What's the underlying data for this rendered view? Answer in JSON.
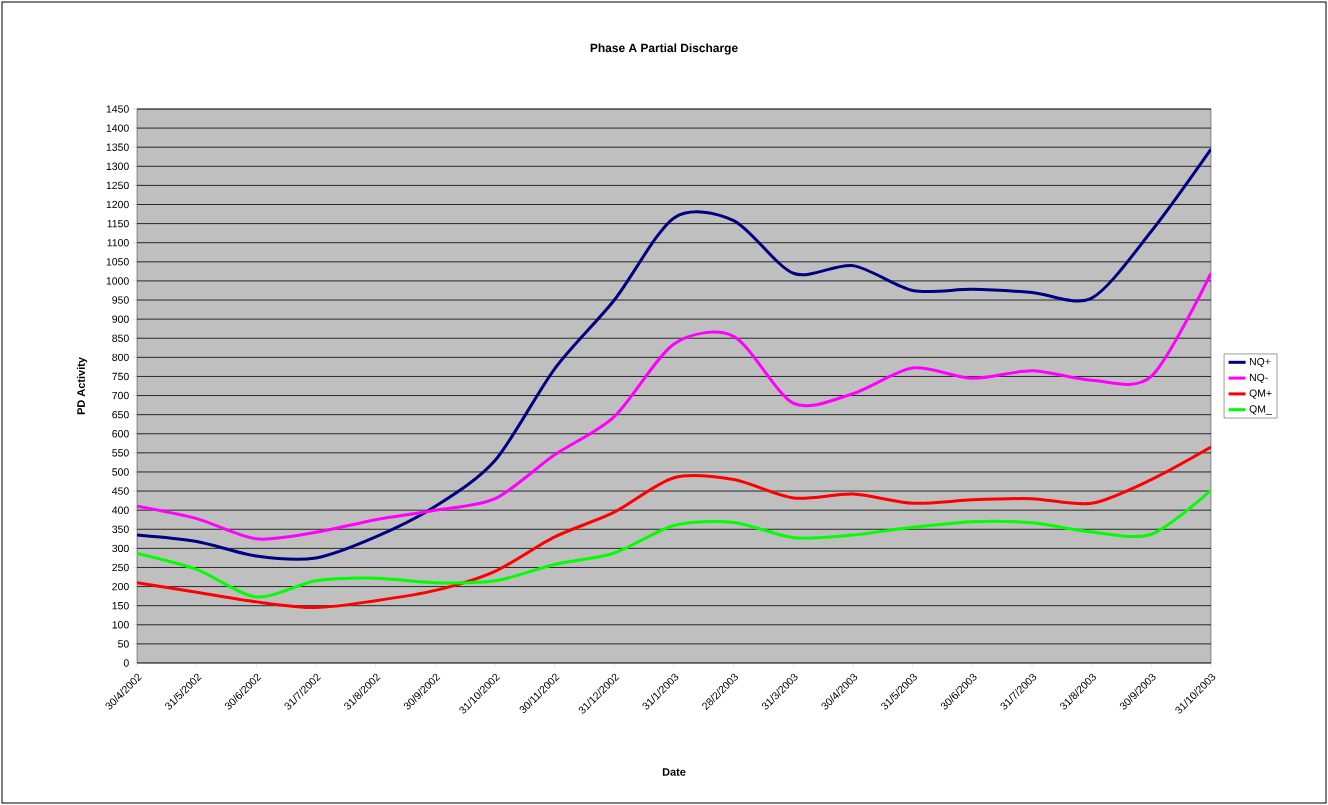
{
  "chart_data": {
    "type": "line",
    "title": "Phase A Partial Discharge",
    "xlabel": "Date",
    "ylabel": "PD Activity",
    "categories": [
      "30/4/2002",
      "31/5/2002",
      "30/6/2002",
      "31/7/2002",
      "31/8/2002",
      "30/9/2002",
      "31/10/2002",
      "30/11/2002",
      "31/12/2002",
      "31/1/2003",
      "28/2/2003",
      "31/3/2003",
      "30/4/2003",
      "31/5/2003",
      "30/6/2003",
      "31/7/2003",
      "31/8/2003",
      "30/9/2003",
      "31/10/2003"
    ],
    "series": [
      {
        "name": "NQ+",
        "color": "#000080",
        "values": [
          335,
          318,
          280,
          275,
          330,
          410,
          530,
          770,
          950,
          1165,
          1158,
          1020,
          1040,
          975,
          978,
          970,
          955,
          1130,
          1345
        ]
      },
      {
        "name": "NQ-",
        "color": "#ff00ff",
        "values": [
          410,
          378,
          325,
          342,
          375,
          400,
          430,
          545,
          645,
          835,
          855,
          680,
          705,
          772,
          745,
          765,
          740,
          750,
          1020
        ]
      },
      {
        "name": "QM+",
        "color": "#ff0000",
        "values": [
          210,
          185,
          160,
          145,
          163,
          190,
          240,
          330,
          395,
          485,
          480,
          432,
          442,
          418,
          427,
          430,
          418,
          480,
          565
        ]
      },
      {
        "name": "QM_",
        "color": "#00ff00",
        "values": [
          287,
          245,
          173,
          215,
          222,
          210,
          215,
          258,
          288,
          360,
          368,
          328,
          335,
          355,
          370,
          367,
          343,
          337,
          452
        ]
      }
    ],
    "ylim": [
      0,
      1450
    ],
    "yticks": [
      0,
      50,
      100,
      150,
      200,
      250,
      300,
      350,
      400,
      450,
      500,
      550,
      600,
      650,
      700,
      750,
      800,
      850,
      900,
      950,
      1000,
      1050,
      1100,
      1150,
      1200,
      1250,
      1300,
      1350,
      1400,
      1450
    ],
    "grid": "y",
    "legend": "right",
    "line_style": "solid"
  }
}
